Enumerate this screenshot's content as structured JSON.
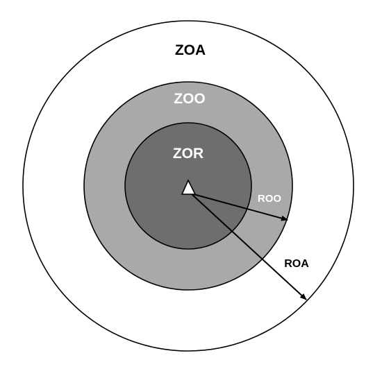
{
  "zones": {
    "attraction": {
      "label": "ZOA",
      "fill": "#ffffff",
      "text_color": "#000000"
    },
    "orientation": {
      "label": "ZOO",
      "fill": "#a9a9a9",
      "text_color": "#ffffff"
    },
    "repulsion": {
      "label": "ZOR",
      "fill": "#6e6e6e",
      "text_color": "#ffffff"
    }
  },
  "radii": {
    "orientation": {
      "label": "ROO",
      "text_color": "#ffffff"
    },
    "attraction": {
      "label": "ROA",
      "text_color": "#000000"
    }
  },
  "agent": {
    "icon": "triangle-icon",
    "fill": "#ffffff"
  },
  "colors": {
    "outline": "#000000"
  }
}
